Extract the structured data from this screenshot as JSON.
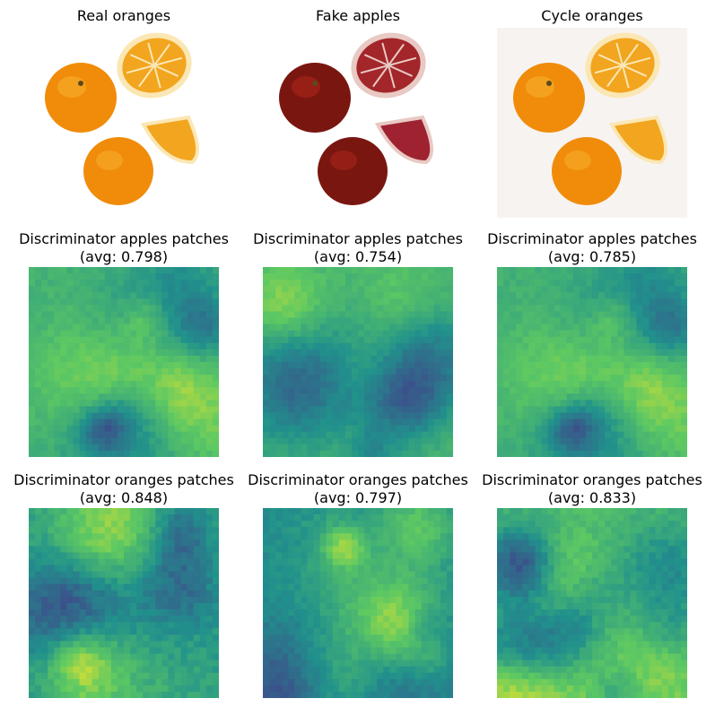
{
  "rows": [
    {
      "kind": "photo",
      "panels": [
        {
          "title": "Real oranges",
          "subtitle": "",
          "variant": "real"
        },
        {
          "title": "Fake apples",
          "subtitle": "",
          "variant": "fake"
        },
        {
          "title": "Cycle oranges",
          "subtitle": "",
          "variant": "cycle"
        }
      ]
    },
    {
      "kind": "heatmap",
      "panels": [
        {
          "title": "Discriminator apples patches",
          "subtitle": "(avg: 0.798)",
          "avg": 0.798,
          "seed": 11
        },
        {
          "title": "Discriminator apples patches",
          "subtitle": "(avg: 0.754)",
          "avg": 0.754,
          "seed": 23
        },
        {
          "title": "Discriminator apples patches",
          "subtitle": "(avg: 0.785)",
          "avg": 0.785,
          "seed": 11
        }
      ]
    },
    {
      "kind": "heatmap",
      "panels": [
        {
          "title": "Discriminator oranges patches",
          "subtitle": "(avg: 0.848)",
          "avg": 0.848,
          "seed": 41
        },
        {
          "title": "Discriminator oranges patches",
          "subtitle": "(avg: 0.797)",
          "avg": 0.797,
          "seed": 57
        },
        {
          "title": "Discriminator oranges patches",
          "subtitle": "(avg: 0.833)",
          "avg": 0.833,
          "seed": 63
        }
      ]
    }
  ],
  "colors": {
    "colormap": [
      "#440154",
      "#3b528b",
      "#21918c",
      "#5ec962",
      "#fde725"
    ],
    "orange_fill": "#f08c0a",
    "orange_light": "#f7b231",
    "orange_pith": "#fbe7b4",
    "apple_fill": "#7a1610",
    "apple_light": "#b0281c",
    "apple_pith": "#e8c9c4"
  }
}
